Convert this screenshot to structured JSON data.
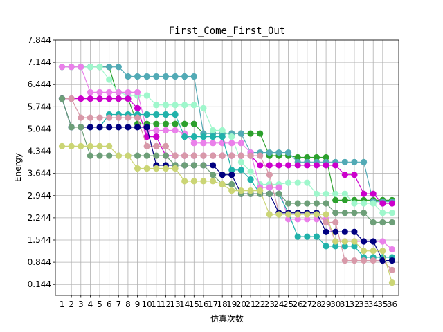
{
  "chart_data": {
    "type": "line",
    "title": "First_Come_First_Out",
    "xlabel": "仿真次数",
    "ylabel": "Energy",
    "x": [
      1,
      2,
      3,
      4,
      5,
      6,
      7,
      8,
      9,
      10,
      11,
      12,
      13,
      14,
      15,
      16,
      17,
      18,
      19,
      20,
      21,
      22,
      23,
      24,
      25,
      26,
      27,
      28,
      29,
      30,
      31,
      32,
      33,
      34,
      35,
      36
    ],
    "xlim": [
      0.3,
      36.7
    ],
    "ylim": [
      -0.2,
      7.844
    ],
    "yticks": [
      0.144,
      0.844,
      1.544,
      2.244,
      2.944,
      3.644,
      4.344,
      5.044,
      5.744,
      6.444,
      7.144,
      7.844
    ],
    "ytick_labels": [
      "0.144",
      "0.844",
      "1.544",
      "2.244",
      "2.944",
      "3.644",
      "4.344",
      "5.044",
      "5.744",
      "6.444",
      "7.144",
      "7.844"
    ],
    "grid": true,
    "legend": "none",
    "series": [
      {
        "color": "#2ca02c",
        "values": [
          7.0,
          7.0,
          7.0,
          7.0,
          7.0,
          7.0,
          6.0,
          6.0,
          5.2,
          5.2,
          5.2,
          5.2,
          5.2,
          5.2,
          5.2,
          4.9,
          4.9,
          4.9,
          4.9,
          4.9,
          4.9,
          4.9,
          4.2,
          4.2,
          4.2,
          4.15,
          4.15,
          4.15,
          4.15,
          2.8,
          2.8,
          2.8,
          2.8,
          2.8,
          2.8,
          2.8
        ]
      },
      {
        "color": "#52aab5",
        "values": [
          7.0,
          7.0,
          7.0,
          7.0,
          7.0,
          7.0,
          7.0,
          6.7,
          6.7,
          6.7,
          6.7,
          6.7,
          6.7,
          6.7,
          6.7,
          4.9,
          4.9,
          4.9,
          4.9,
          4.9,
          4.3,
          4.3,
          4.3,
          4.3,
          4.3,
          4.0,
          4.0,
          4.0,
          4.0,
          4.0,
          4.0,
          4.0,
          4.0,
          2.75,
          2.75,
          2.75
        ]
      },
      {
        "color": "#9ff7cc",
        "values": [
          7.0,
          7.0,
          7.0,
          7.0,
          7.0,
          6.6,
          6.2,
          6.1,
          6.1,
          6.1,
          5.8,
          5.8,
          5.8,
          5.8,
          5.8,
          5.7,
          5.0,
          5.0,
          4.8,
          4.0,
          3.7,
          3.3,
          3.3,
          3.3,
          3.35,
          3.35,
          3.35,
          3.0,
          3.0,
          3.0,
          3.0,
          2.7,
          2.7,
          2.7,
          2.4,
          2.4
        ]
      },
      {
        "color": "#ea80ea",
        "values": [
          7.0,
          7.0,
          7.0,
          6.2,
          6.2,
          6.2,
          6.2,
          6.2,
          6.2,
          5.0,
          5.0,
          5.0,
          5.0,
          4.9,
          4.6,
          4.6,
          4.6,
          4.6,
          4.6,
          4.6,
          4.3,
          3.2,
          3.2,
          3.2,
          2.2,
          2.2,
          2.2,
          2.2,
          2.2,
          1.5,
          1.5,
          1.5,
          1.5,
          1.5,
          1.5,
          1.25
        ]
      },
      {
        "color": "#cc00cc",
        "values": [
          6.0,
          6.0,
          6.0,
          6.0,
          6.0,
          6.0,
          6.0,
          6.0,
          5.7,
          4.8,
          4.8,
          4.2,
          4.2,
          4.2,
          4.2,
          4.2,
          4.2,
          4.2,
          4.2,
          4.2,
          4.2,
          3.9,
          3.9,
          3.9,
          3.9,
          3.9,
          3.9,
          3.9,
          3.9,
          3.9,
          3.6,
          3.6,
          3.0,
          3.0,
          2.7,
          2.7
        ]
      },
      {
        "color": "#20b2aa",
        "values": [
          6.0,
          5.1,
          5.1,
          5.1,
          5.1,
          5.5,
          5.5,
          5.5,
          5.5,
          5.5,
          5.5,
          5.5,
          5.5,
          4.8,
          4.8,
          4.8,
          4.8,
          4.8,
          3.75,
          3.75,
          3.45,
          3.0,
          3.0,
          3.0,
          2.4,
          1.65,
          1.65,
          1.65,
          1.35,
          1.35,
          1.35,
          1.35,
          1.0,
          1.0,
          1.0,
          1.0
        ]
      },
      {
        "color": "#d899a9",
        "values": [
          6.0,
          6.0,
          5.4,
          5.4,
          5.4,
          5.4,
          5.4,
          5.4,
          5.4,
          4.5,
          4.5,
          4.5,
          4.2,
          4.2,
          4.2,
          4.2,
          4.2,
          4.2,
          4.2,
          4.2,
          4.2,
          4.2,
          3.6,
          2.4,
          2.4,
          2.4,
          2.4,
          2.4,
          2.1,
          2.1,
          0.9,
          0.9,
          0.9,
          0.9,
          0.9,
          0.6
        ]
      },
      {
        "color": "#000080",
        "values": [
          6.0,
          5.1,
          5.1,
          5.1,
          5.1,
          5.1,
          5.1,
          5.1,
          5.1,
          5.1,
          3.9,
          3.9,
          3.9,
          3.9,
          3.9,
          3.9,
          3.9,
          3.6,
          3.6,
          3.0,
          3.0,
          3.0,
          3.0,
          2.4,
          2.4,
          2.4,
          2.4,
          2.4,
          1.8,
          1.8,
          1.8,
          1.8,
          1.5,
          1.5,
          0.9,
          0.9
        ]
      },
      {
        "color": "#6d9f78",
        "values": [
          6.0,
          5.1,
          5.1,
          4.2,
          4.2,
          4.2,
          4.2,
          4.2,
          4.2,
          4.2,
          4.2,
          4.2,
          3.9,
          3.9,
          3.9,
          3.9,
          3.6,
          3.3,
          3.3,
          3.0,
          3.0,
          3.0,
          3.0,
          3.0,
          2.7,
          2.7,
          2.7,
          2.7,
          2.7,
          2.4,
          2.4,
          2.4,
          2.4,
          2.1,
          2.1,
          2.1
        ]
      },
      {
        "color": "#cbd575",
        "values": [
          4.5,
          4.5,
          4.5,
          4.5,
          4.5,
          4.5,
          4.2,
          4.2,
          3.8,
          3.8,
          3.8,
          3.8,
          3.8,
          3.4,
          3.4,
          3.4,
          3.4,
          3.3,
          3.1,
          3.1,
          3.1,
          3.1,
          2.35,
          2.35,
          2.35,
          2.35,
          2.35,
          2.35,
          2.35,
          1.5,
          1.5,
          1.5,
          1.2,
          1.2,
          1.2,
          0.2
        ]
      }
    ]
  }
}
